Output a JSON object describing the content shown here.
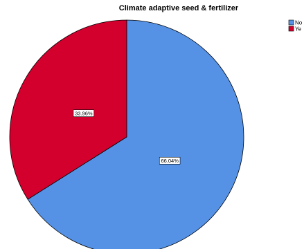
{
  "chart_data": {
    "type": "pie",
    "title": "Climate adaptive seed & fertilizer",
    "categories": [
      "No",
      "Ye"
    ],
    "values": [
      66.04,
      33.96
    ],
    "labels": [
      "66.04%",
      "33.96%"
    ],
    "colors": [
      "#5592E6",
      "#D3002E"
    ],
    "start_angle_deg": 0,
    "direction": "clockwise",
    "legend_position": "top-right"
  }
}
